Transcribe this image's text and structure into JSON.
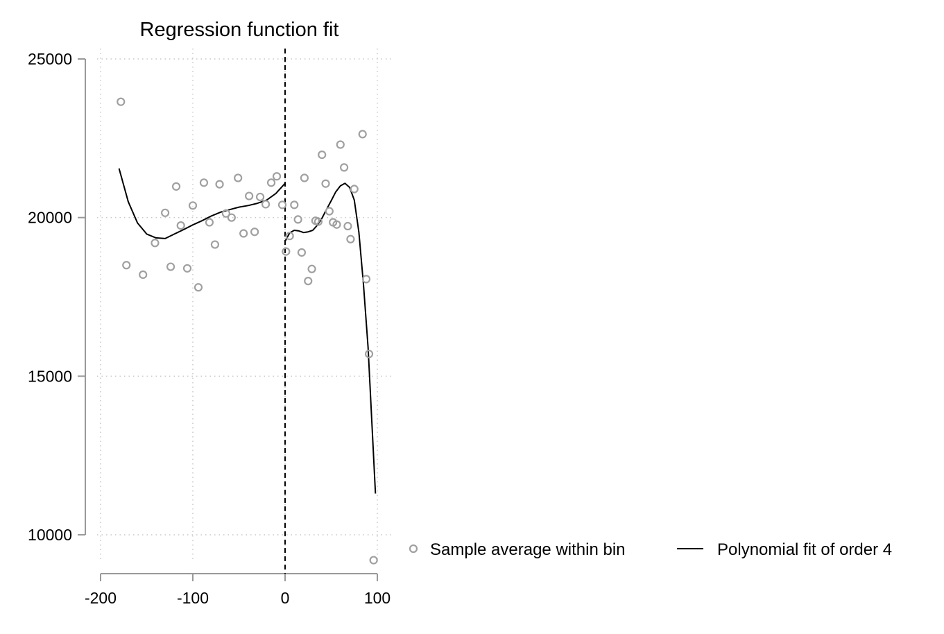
{
  "chart_data": {
    "type": "scatter",
    "title": "Regression function fit",
    "xlabel": "",
    "ylabel": "",
    "xlim": [
      -200,
      100
    ],
    "ylim": [
      10000,
      25000
    ],
    "xticks": [
      -200,
      -100,
      0,
      100
    ],
    "xtick_labels": [
      "-200",
      "-100",
      "0",
      "100"
    ],
    "yticks": [
      10000,
      15000,
      20000,
      25000
    ],
    "ytick_labels": [
      "10000",
      "15000",
      "20000",
      "25000"
    ],
    "grid": "dotted",
    "cutoff": 0,
    "legend_position": "bottom-right",
    "colors": {
      "points": "#a0a0a0",
      "fit": "#000000",
      "grid": "#c8c8c8",
      "axis": "#999999"
    },
    "series": [
      {
        "name": "Sample average within bin",
        "kind": "scatter",
        "points": [
          [
            -178,
            23650
          ],
          [
            -172,
            18500
          ],
          [
            -154,
            18200
          ],
          [
            -141,
            19200
          ],
          [
            -130,
            20150
          ],
          [
            -124,
            18450
          ],
          [
            -118,
            20980
          ],
          [
            -113,
            19750
          ],
          [
            -106,
            18400
          ],
          [
            -100,
            20380
          ],
          [
            -94,
            17800
          ],
          [
            -88,
            21100
          ],
          [
            -82,
            19850
          ],
          [
            -76,
            19150
          ],
          [
            -71,
            21050
          ],
          [
            -64,
            20130
          ],
          [
            -58,
            20000
          ],
          [
            -51,
            21250
          ],
          [
            -45,
            19500
          ],
          [
            -39,
            20680
          ],
          [
            -33,
            19550
          ],
          [
            -27,
            20650
          ],
          [
            -21,
            20420
          ],
          [
            -15,
            21100
          ],
          [
            -9,
            21300
          ],
          [
            -3,
            20400
          ],
          [
            1,
            18930
          ],
          [
            5,
            19420
          ],
          [
            10,
            20400
          ],
          [
            14,
            19940
          ],
          [
            18,
            18900
          ],
          [
            21,
            21250
          ],
          [
            25,
            18000
          ],
          [
            29,
            18380
          ],
          [
            33,
            19900
          ],
          [
            36,
            19870
          ],
          [
            40,
            21980
          ],
          [
            44,
            21070
          ],
          [
            48,
            20200
          ],
          [
            52,
            19850
          ],
          [
            56,
            19780
          ],
          [
            60,
            22300
          ],
          [
            64,
            21580
          ],
          [
            68,
            19730
          ],
          [
            71,
            19320
          ],
          [
            75,
            20900
          ],
          [
            84,
            22630
          ],
          [
            88,
            18060
          ],
          [
            91,
            15700
          ],
          [
            96,
            9200
          ]
        ]
      },
      {
        "name": "Polynomial fit of order 4",
        "kind": "line",
        "segments": [
          [
            [
              -180,
              21550
            ],
            [
              -170,
              20500
            ],
            [
              -160,
              19830
            ],
            [
              -150,
              19480
            ],
            [
              -140,
              19360
            ],
            [
              -130,
              19340
            ],
            [
              -120,
              19480
            ],
            [
              -110,
              19620
            ],
            [
              -100,
              19770
            ],
            [
              -90,
              19900
            ],
            [
              -80,
              20050
            ],
            [
              -70,
              20170
            ],
            [
              -60,
              20250
            ],
            [
              -50,
              20330
            ],
            [
              -40,
              20380
            ],
            [
              -30,
              20450
            ],
            [
              -20,
              20550
            ],
            [
              -10,
              20760
            ],
            [
              0,
              21080
            ]
          ],
          [
            [
              0,
              19250
            ],
            [
              5,
              19520
            ],
            [
              10,
              19600
            ],
            [
              15,
              19580
            ],
            [
              20,
              19530
            ],
            [
              25,
              19550
            ],
            [
              30,
              19600
            ],
            [
              35,
              19760
            ],
            [
              40,
              19980
            ],
            [
              45,
              20260
            ],
            [
              50,
              20530
            ],
            [
              55,
              20810
            ],
            [
              60,
              21000
            ],
            [
              65,
              21080
            ],
            [
              70,
              20950
            ],
            [
              75,
              20550
            ],
            [
              80,
              19540
            ],
            [
              85,
              17900
            ],
            [
              90,
              15900
            ],
            [
              94,
              13600
            ],
            [
              98,
              11300
            ]
          ]
        ]
      }
    ]
  }
}
